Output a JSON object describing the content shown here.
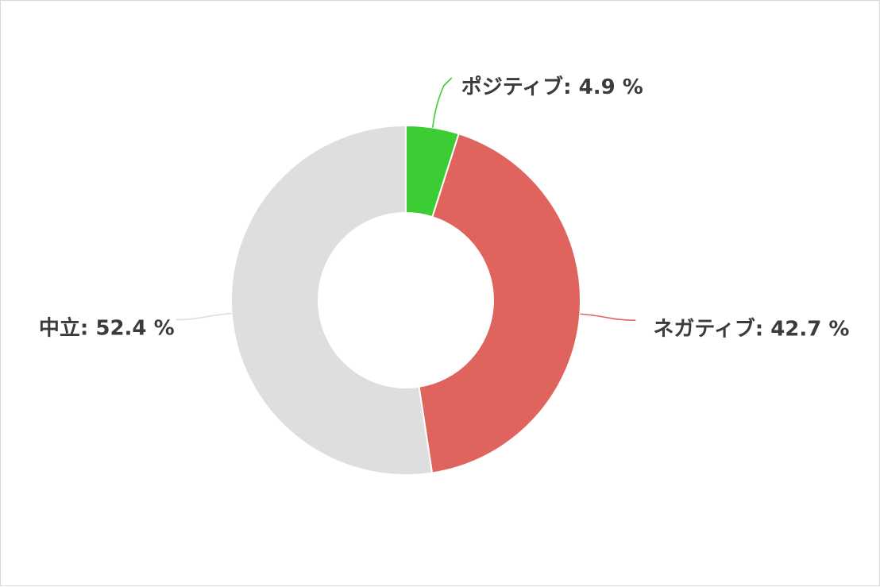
{
  "chart_data": {
    "type": "pie",
    "variant": "donut",
    "categories": [
      "ポジティブ",
      "ネガティブ",
      "中立"
    ],
    "values": [
      4.9,
      42.7,
      52.4
    ],
    "unit": "%",
    "colors": [
      "#3ccc34",
      "#e0645e",
      "#dedede"
    ],
    "labels": [
      "ポジティブ: 4.9 %",
      "ネガティブ: 42.7 %",
      "中立: 52.4 %"
    ],
    "title": "",
    "legend": "none"
  }
}
